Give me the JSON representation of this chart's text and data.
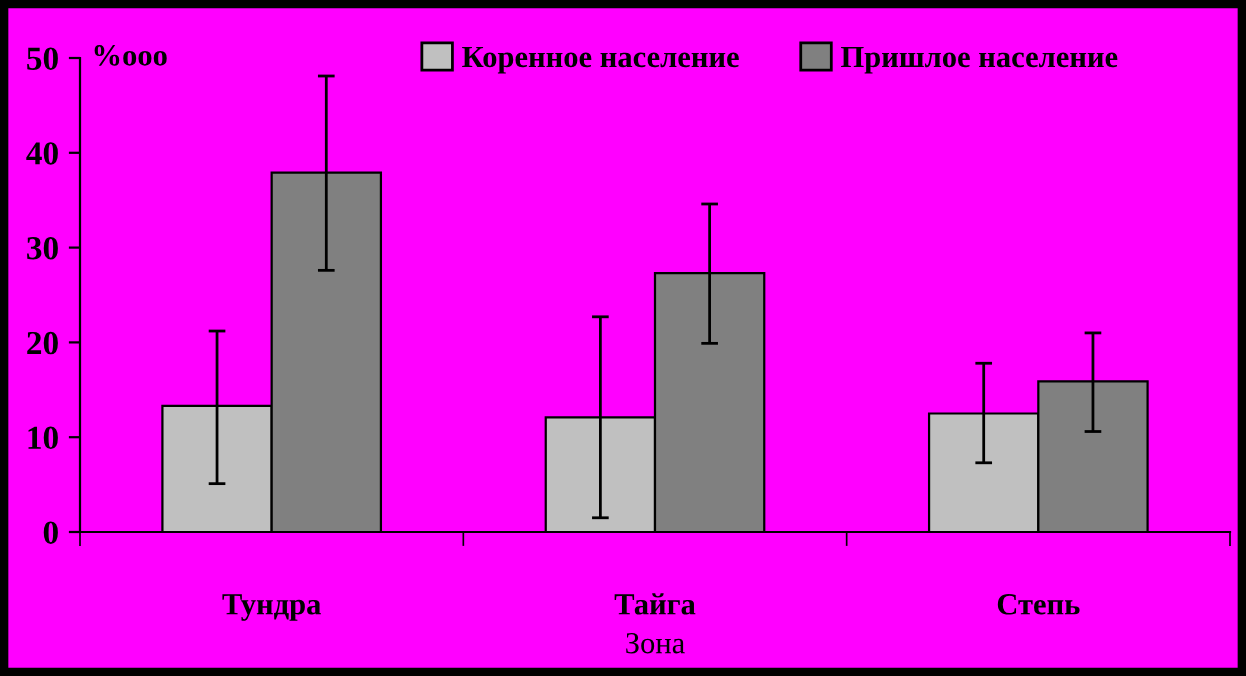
{
  "chart_data": {
    "type": "bar",
    "ylabel": "%ooo",
    "xlabel": "Зона",
    "categories": [
      "Тундра",
      "Тайга",
      "Степь"
    ],
    "series": [
      {
        "name": "Коренное население",
        "color": "#c0c0c0",
        "values": [
          13.3,
          12.1,
          12.5
        ],
        "errors": [
          [
            5.1,
            21.2
          ],
          [
            1.5,
            22.7
          ],
          [
            7.3,
            17.8
          ]
        ]
      },
      {
        "name": "Пришлое население",
        "color": "#808080",
        "values": [
          37.9,
          27.3,
          15.9
        ],
        "errors": [
          [
            27.6,
            48.1
          ],
          [
            19.9,
            34.6
          ],
          [
            10.6,
            21.0
          ]
        ]
      }
    ],
    "ylim": [
      0,
      50
    ],
    "yticks": [
      0,
      10,
      20,
      30,
      40,
      50
    ],
    "grid": false,
    "legend": "top right"
  }
}
